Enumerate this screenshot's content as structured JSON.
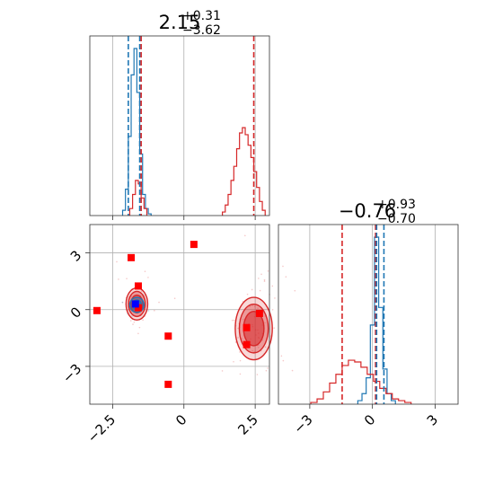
{
  "colors": {
    "blue": "#1f77b4",
    "red": "#d62728",
    "marker_red": "#ff0000",
    "marker_blue": "#0000ff",
    "frame": "#333333",
    "grid": "#b0b0b0"
  },
  "chart_data": {
    "type": "corner",
    "parameters": [
      "p0",
      "p1"
    ],
    "panels": [
      {
        "id": "hist_p0",
        "type": "step-histogram",
        "title_value": "2.15",
        "title_plus": "+0.31",
        "title_minus": "−3.62",
        "xlim": [
          -3.3,
          3.0
        ],
        "xticks": [
          -2.5,
          0.0,
          2.5
        ],
        "grid": true,
        "series": [
          {
            "name": "blue",
            "color": "#1f77b4",
            "x": [
              -2.1,
              -2.0,
              -1.9,
              -1.8,
              -1.7,
              -1.6,
              -1.5,
              -1.4,
              -1.3,
              -1.2
            ],
            "values": [
              0.03,
              0.15,
              0.45,
              0.8,
              0.95,
              0.7,
              0.35,
              0.12,
              0.04,
              0.01
            ]
          },
          {
            "name": "red",
            "color": "#d62728",
            "x": [
              -1.85,
              -1.75,
              -1.65,
              -1.55,
              -1.45,
              -1.35,
              1.4,
              1.5,
              1.6,
              1.7,
              1.8,
              1.9,
              2.0,
              2.1,
              2.2,
              2.3,
              2.4,
              2.5,
              2.6,
              2.7,
              2.8
            ],
            "values": [
              0.04,
              0.12,
              0.2,
              0.18,
              0.1,
              0.04,
              0.02,
              0.06,
              0.12,
              0.2,
              0.28,
              0.38,
              0.47,
              0.5,
              0.46,
              0.4,
              0.33,
              0.25,
              0.16,
              0.08,
              0.03
            ]
          }
        ],
        "vlines": [
          {
            "color": "#1f77b4",
            "x": -1.95
          },
          {
            "color": "#1f77b4",
            "x": -1.55
          },
          {
            "color": "#d62728",
            "x": -1.5
          },
          {
            "color": "#d62728",
            "x": 2.45
          }
        ]
      },
      {
        "id": "hist_p1",
        "type": "step-histogram",
        "title_value": "−0.76",
        "title_plus": "+0.93",
        "title_minus": "−0.70",
        "xlim": [
          -4.5,
          4.1
        ],
        "xticks": [
          -3,
          0,
          3
        ],
        "grid": true,
        "series": [
          {
            "name": "blue",
            "color": "#1f77b4",
            "x": [
              -0.6,
              -0.4,
              -0.2,
              0.0,
              0.2,
              0.4,
              0.6,
              0.8,
              1.0
            ],
            "values": [
              0.02,
              0.06,
              0.15,
              0.45,
              0.95,
              0.55,
              0.2,
              0.06,
              0.02
            ]
          },
          {
            "name": "red",
            "color": "#d62728",
            "x": [
              -2.8,
              -2.5,
              -2.2,
              -1.9,
              -1.6,
              -1.3,
              -1.0,
              -0.7,
              -0.4,
              -0.1,
              0.2,
              0.5,
              0.8,
              1.1,
              1.4,
              1.7
            ],
            "values": [
              0.01,
              0.03,
              0.07,
              0.12,
              0.17,
              0.22,
              0.25,
              0.24,
              0.21,
              0.17,
              0.13,
              0.09,
              0.06,
              0.03,
              0.02,
              0.01
            ]
          }
        ],
        "vlines": [
          {
            "color": "#d62728",
            "x": -1.45
          },
          {
            "color": "#d62728",
            "x": 0.15
          },
          {
            "color": "#1f77b4",
            "x": 0.2
          },
          {
            "color": "#1f77b4",
            "x": 0.55
          }
        ]
      },
      {
        "id": "scatter_p0_p1",
        "type": "2d-contour",
        "xlim": [
          -3.3,
          3.0
        ],
        "ylim": [
          -5.0,
          4.5
        ],
        "xticks": [
          -2.5,
          0.0,
          2.5
        ],
        "yticks": [
          3,
          0,
          -3
        ],
        "grid": true,
        "blue_blob": {
          "center": [
            -1.65,
            0.25
          ],
          "radius": [
            0.25,
            0.4
          ]
        },
        "red_blob_left": {
          "center": [
            -1.65,
            0.3
          ],
          "radius": [
            0.38,
            0.85
          ]
        },
        "red_blob_right": {
          "center": [
            2.45,
            -1.0
          ],
          "radius": [
            0.65,
            1.65
          ]
        },
        "markers_red": [
          {
            "x": -1.85,
            "y": 2.75
          },
          {
            "x": 0.35,
            "y": 3.45
          },
          {
            "x": -1.6,
            "y": 1.25
          },
          {
            "x": -1.6,
            "y": 0.1
          },
          {
            "x": -3.05,
            "y": -0.05
          },
          {
            "x": -0.55,
            "y": -1.4
          },
          {
            "x": -0.55,
            "y": -3.95
          },
          {
            "x": 2.65,
            "y": -0.2
          },
          {
            "x": 2.2,
            "y": -0.95
          },
          {
            "x": 2.2,
            "y": -1.85
          }
        ],
        "marker_blue": {
          "x": -1.7,
          "y": 0.3
        }
      }
    ]
  }
}
